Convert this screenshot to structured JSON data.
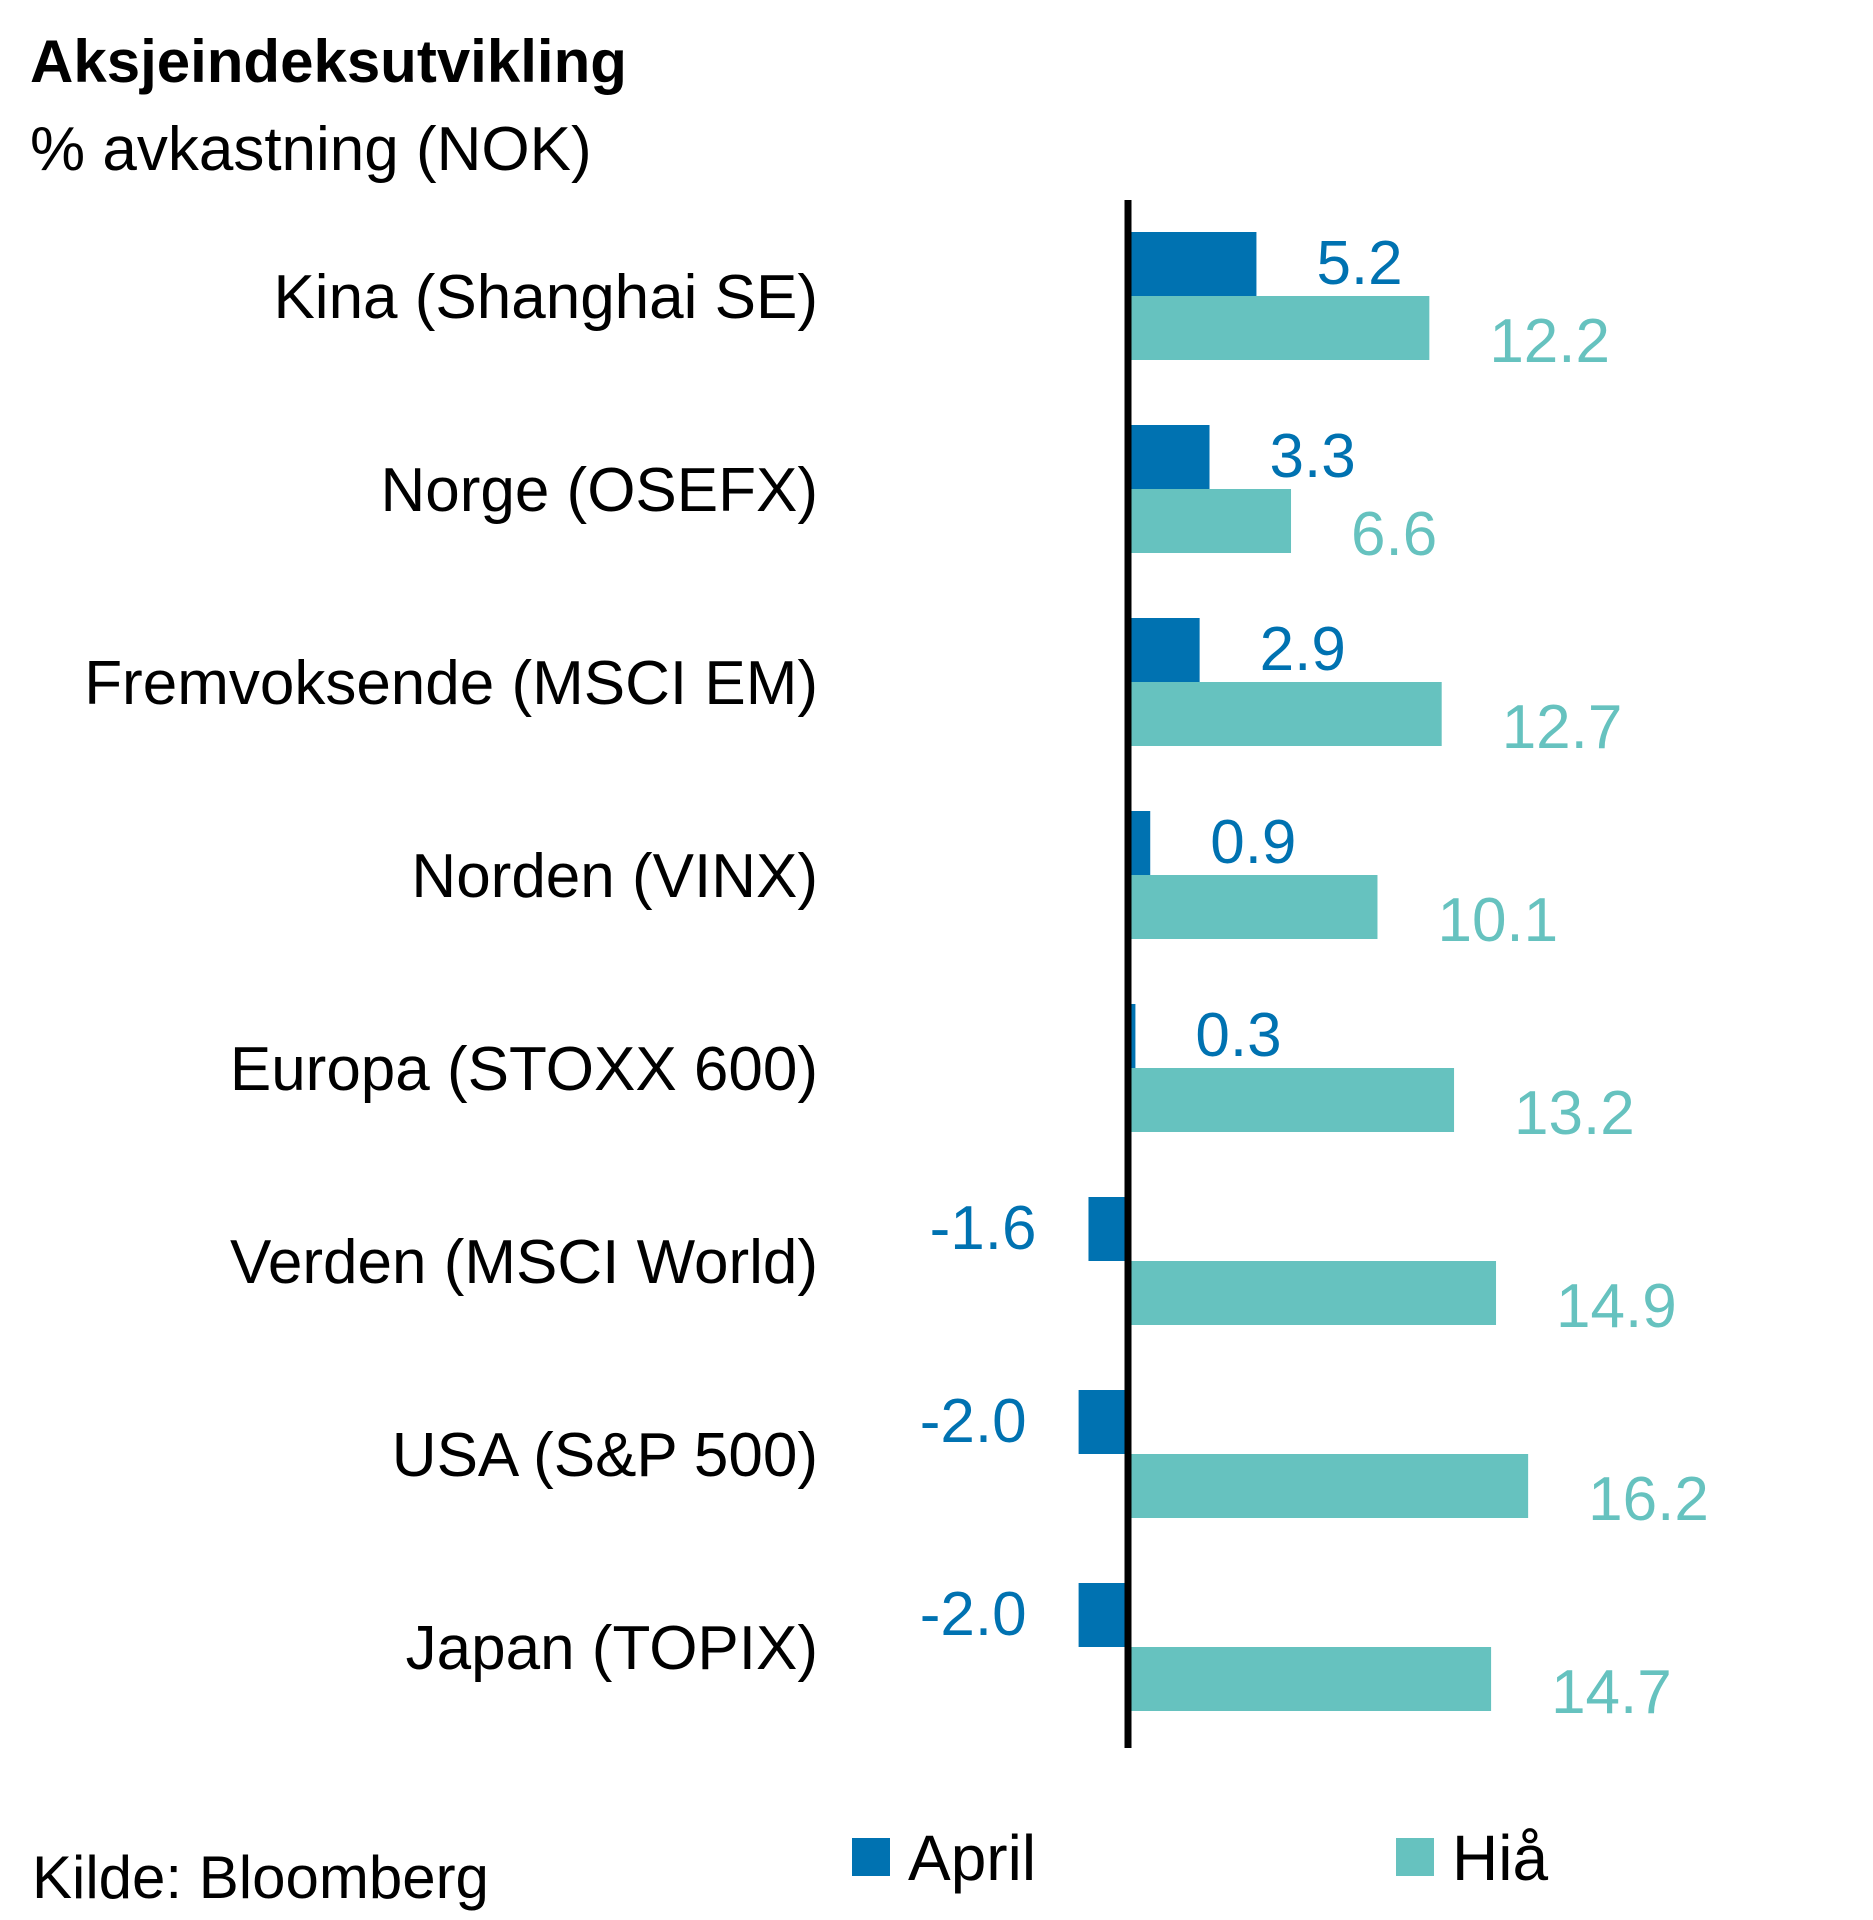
{
  "chart_data": {
    "type": "bar",
    "orientation": "horizontal",
    "title": "Aksjeindeksutvikling",
    "subtitle": "% avkastning (NOK)",
    "source": "Kilde: Bloomberg",
    "categories": [
      "Kina (Shanghai SE)",
      "Norge (OSEFX)",
      "Fremvoksende (MSCI EM)",
      "Norden (VINX)",
      "Europa (STOXX 600)",
      "Verden (MSCI World)",
      "USA (S&P 500)",
      "Japan (TOPIX)"
    ],
    "series": [
      {
        "name": "April",
        "color": "#0072b1",
        "values": [
          5.2,
          3.3,
          2.9,
          0.9,
          0.3,
          -1.6,
          -2.0,
          -2.0
        ],
        "labels": [
          "5.2",
          "3.3",
          "2.9",
          "0.9",
          "0.3",
          "-1.6",
          "-2.0",
          "-2.0"
        ]
      },
      {
        "name": "Hiå",
        "color": "#66c2bf",
        "values": [
          12.2,
          6.6,
          12.7,
          10.1,
          13.2,
          14.9,
          16.2,
          14.7
        ],
        "labels": [
          "12.2",
          "6.6",
          "12.7",
          "10.1",
          "13.2",
          "14.9",
          "16.2",
          "14.7"
        ]
      }
    ],
    "legend_position": "bottom",
    "grid": false,
    "axis_color": "#000000"
  }
}
